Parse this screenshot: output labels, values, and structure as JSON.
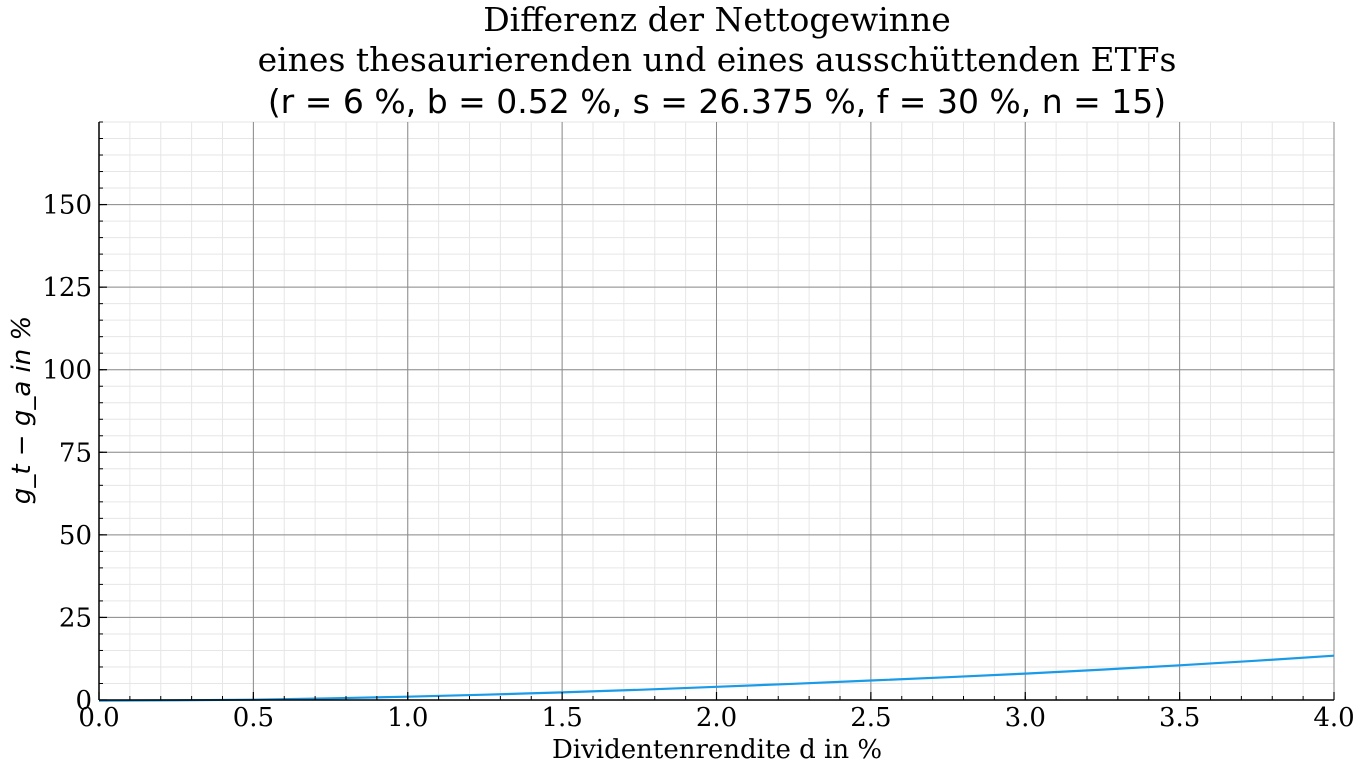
{
  "chart_data": {
    "type": "line",
    "title_lines": [
      "Differenz der Nettogewinne",
      "eines thesaurierenden und eines ausschüttenden ETFs",
      "(r = 6 %, b = 0.52 %, s = 26.375 %, f = 30 %, n = 15)"
    ],
    "xlabel": "Dividentenrendite d in %",
    "ylabel": "g_t − g_a in %",
    "xlim": [
      0,
      4
    ],
    "ylim": [
      0,
      175
    ],
    "xticks": [
      "0.0",
      "0.5",
      "1.0",
      "1.5",
      "2.0",
      "2.5",
      "3.0",
      "3.5",
      "4.0"
    ],
    "yticks": [
      "0",
      "25",
      "50",
      "75",
      "100",
      "125",
      "150"
    ],
    "grid": true,
    "series": [
      {
        "color": "#1a9be8",
        "x": [
          0.0,
          0.25,
          0.5,
          0.75,
          1.0,
          1.25,
          1.5,
          1.75,
          2.0,
          2.25,
          2.5,
          2.75,
          3.0,
          3.25,
          3.5,
          3.75,
          4.0
        ],
        "y": [
          -0.2,
          -0.1,
          0.1,
          0.5,
          1.0,
          1.6,
          2.3,
          3.1,
          4.0,
          4.9,
          5.9,
          6.9,
          8.0,
          9.2,
          10.5,
          11.9,
          13.4
        ]
      }
    ]
  }
}
